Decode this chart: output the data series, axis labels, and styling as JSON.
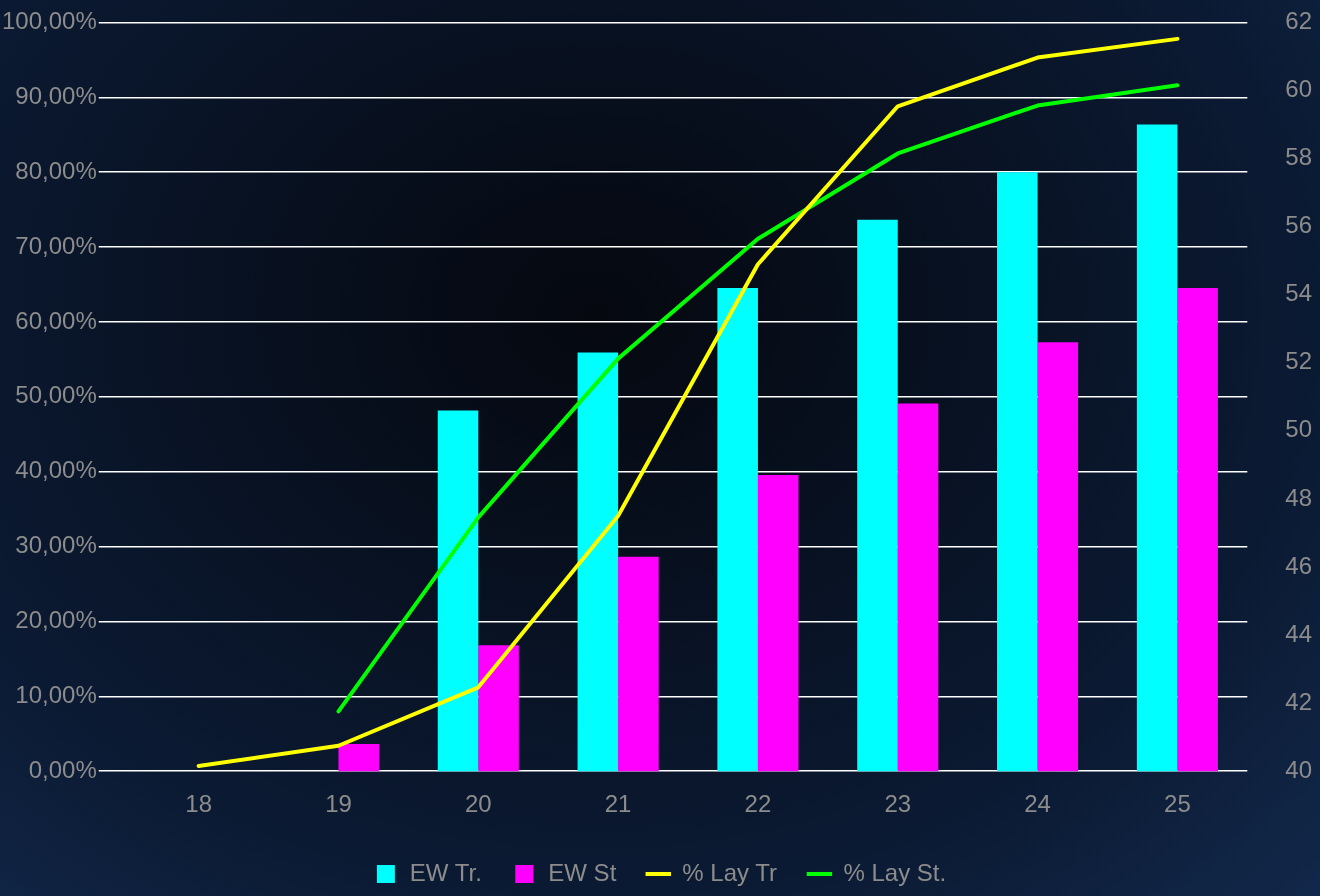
{
  "chart_data": {
    "type": "bar",
    "categories": [
      "18",
      "19",
      "20",
      "21",
      "22",
      "23",
      "24",
      "25"
    ],
    "series": [
      {
        "name": "EW Tr.",
        "axis": "y2",
        "color": "#00ffff",
        "values": [
          null,
          null,
          50.6,
          52.3,
          54.2,
          56.2,
          57.6,
          59.0
        ]
      },
      {
        "name": "EW St",
        "axis": "y2",
        "color": "#ff00ff",
        "values": [
          null,
          40.8,
          43.7,
          46.3,
          48.7,
          50.8,
          52.6,
          54.2
        ]
      },
      {
        "name": "% Lay Tr",
        "type": "line",
        "color": "#ffff00",
        "values": [
          0.7,
          3.4,
          11.2,
          34.1,
          67.7,
          88.8,
          95.3,
          97.8
        ]
      },
      {
        "name": "% Lay St.",
        "type": "line",
        "color": "#00ff00",
        "values": [
          null,
          8.0,
          33.9,
          55.1,
          71.1,
          82.5,
          88.9,
          91.6
        ]
      }
    ],
    "ylim": [
      0,
      100
    ],
    "yticks": [
      {
        "value": 0,
        "label": "0,00%"
      },
      {
        "value": 10,
        "label": "10,00%"
      },
      {
        "value": 20,
        "label": "20,00%"
      },
      {
        "value": 30,
        "label": "30,00%"
      },
      {
        "value": 40,
        "label": "40,00%"
      },
      {
        "value": 50,
        "label": "50,00%"
      },
      {
        "value": 60,
        "label": "60,00%"
      },
      {
        "value": 70,
        "label": "70,00%"
      },
      {
        "value": 80,
        "label": "80,00%"
      },
      {
        "value": 90,
        "label": "90,00%"
      },
      {
        "value": 100,
        "label": "100,00%"
      }
    ],
    "y2lim": [
      40,
      62
    ],
    "y2ticks": [
      40,
      42,
      44,
      46,
      48,
      50,
      52,
      54,
      56,
      58,
      60,
      62
    ],
    "grid": "y",
    "legend": "bottom",
    "marker": "none",
    "line_style": "solid"
  }
}
